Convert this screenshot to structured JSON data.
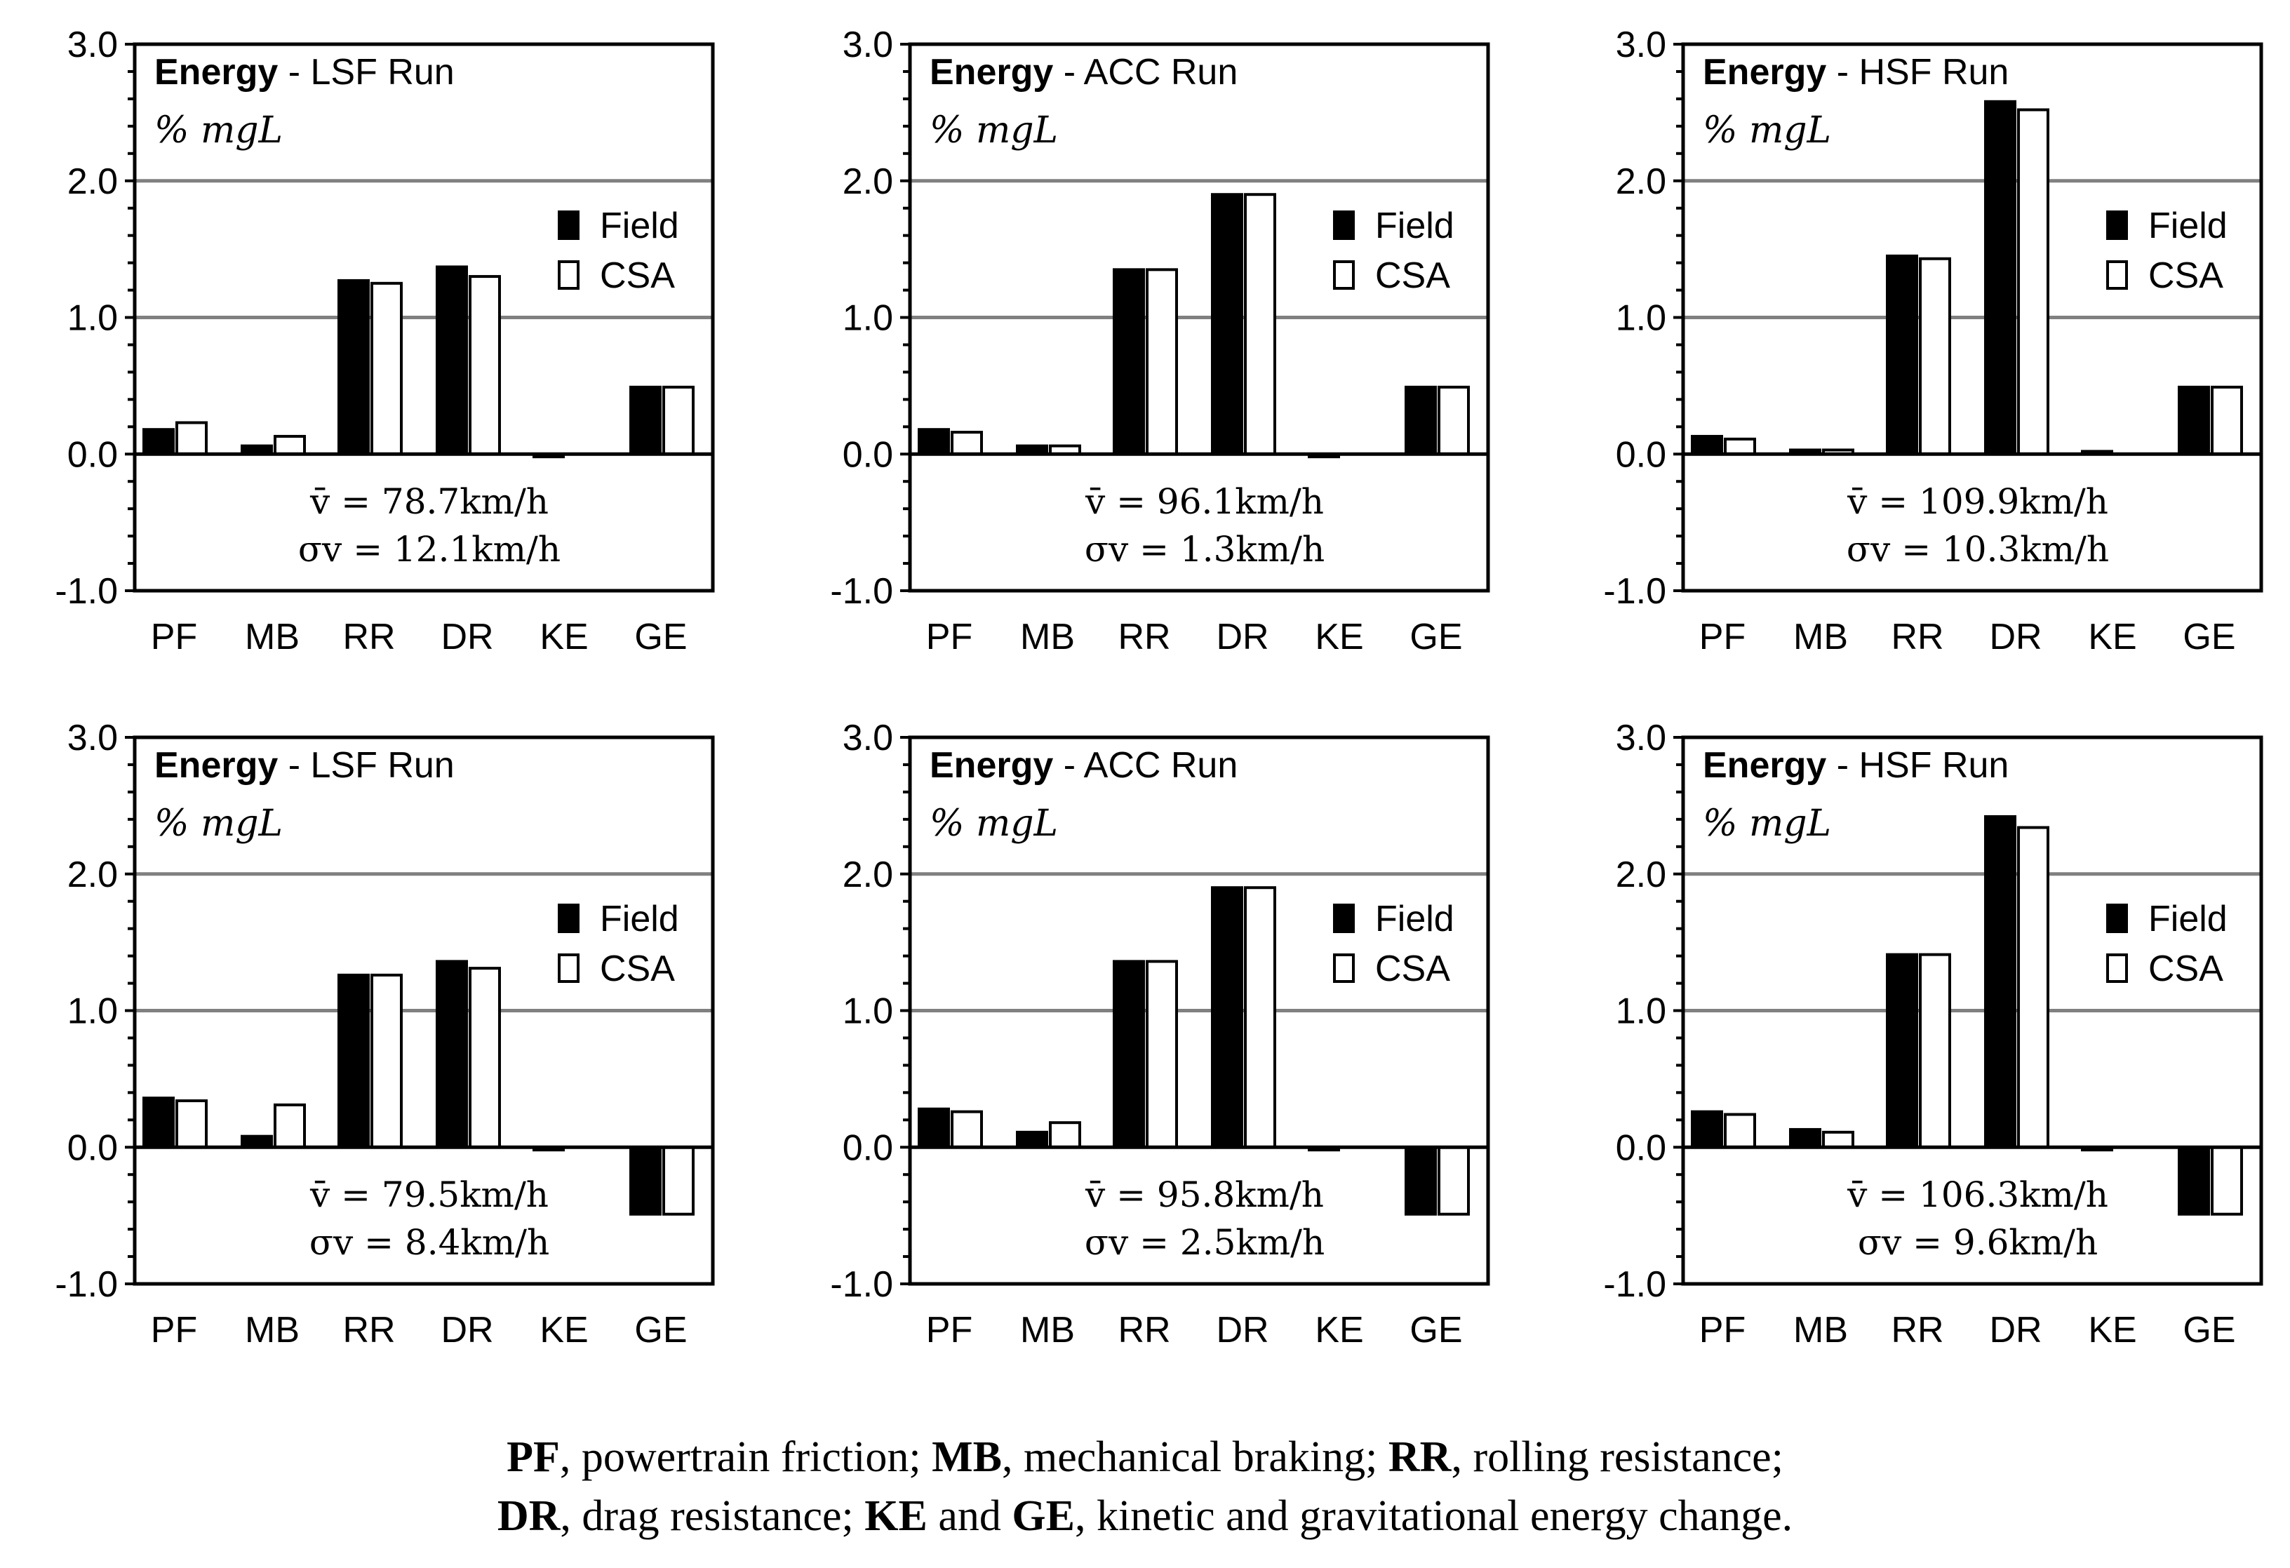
{
  "chart_data": [
    {
      "type": "bar",
      "title_bold": "Energy",
      "title_rest": " - LSF Run",
      "unit_label": "% mgL",
      "categories": [
        "PF",
        "MB",
        "RR",
        "DR",
        "KE",
        "GE"
      ],
      "series": [
        {
          "name": "Field",
          "values": [
            0.18,
            0.06,
            1.27,
            1.37,
            -0.02,
            0.49
          ]
        },
        {
          "name": "CSA",
          "values": [
            0.23,
            0.13,
            1.25,
            1.3,
            0.0,
            0.49
          ]
        }
      ],
      "ylim": [
        -1.0,
        3.0
      ],
      "yticks": [
        "3.0",
        "2.0",
        "1.0",
        "0.0",
        "-1.0"
      ],
      "ytick_values": [
        3.0,
        2.0,
        1.0,
        0.0,
        -1.0
      ],
      "annotation_mean": "v̄ = 78.7km/h",
      "annotation_sd": "σv = 12.1km/h"
    },
    {
      "type": "bar",
      "title_bold": "Energy",
      "title_rest": " - ACC Run",
      "unit_label": "% mgL",
      "categories": [
        "PF",
        "MB",
        "RR",
        "DR",
        "KE",
        "GE"
      ],
      "series": [
        {
          "name": "Field",
          "values": [
            0.18,
            0.06,
            1.35,
            1.9,
            -0.02,
            0.49
          ]
        },
        {
          "name": "CSA",
          "values": [
            0.16,
            0.06,
            1.35,
            1.9,
            0.0,
            0.49
          ]
        }
      ],
      "ylim": [
        -1.0,
        3.0
      ],
      "yticks": [
        "3.0",
        "2.0",
        "1.0",
        "0.0",
        "-1.0"
      ],
      "ytick_values": [
        3.0,
        2.0,
        1.0,
        0.0,
        -1.0
      ],
      "annotation_mean": "v̄ = 96.1km/h",
      "annotation_sd": "σv = 1.3km/h"
    },
    {
      "type": "bar",
      "title_bold": "Energy",
      "title_rest": " - HSF Run",
      "unit_label": "% mgL",
      "categories": [
        "PF",
        "MB",
        "RR",
        "DR",
        "KE",
        "GE"
      ],
      "series": [
        {
          "name": "Field",
          "values": [
            0.13,
            0.03,
            1.45,
            2.58,
            0.02,
            0.49
          ]
        },
        {
          "name": "CSA",
          "values": [
            0.11,
            0.03,
            1.43,
            2.52,
            0.0,
            0.49
          ]
        }
      ],
      "ylim": [
        -1.0,
        3.0
      ],
      "yticks": [
        "3.0",
        "2.0",
        "1.0",
        "0.0",
        "-1.0"
      ],
      "ytick_values": [
        3.0,
        2.0,
        1.0,
        0.0,
        -1.0
      ],
      "annotation_mean": "v̄ = 109.9km/h",
      "annotation_sd": "σv = 10.3km/h"
    },
    {
      "type": "bar",
      "title_bold": "Energy",
      "title_rest": " - LSF Run",
      "unit_label": "% mgL",
      "categories": [
        "PF",
        "MB",
        "RR",
        "DR",
        "KE",
        "GE"
      ],
      "series": [
        {
          "name": "Field",
          "values": [
            0.36,
            0.08,
            1.26,
            1.36,
            -0.02,
            -0.49
          ]
        },
        {
          "name": "CSA",
          "values": [
            0.34,
            0.31,
            1.26,
            1.31,
            0.0,
            -0.49
          ]
        }
      ],
      "ylim": [
        -1.0,
        3.0
      ],
      "yticks": [
        "3.0",
        "2.0",
        "1.0",
        "0.0",
        "-1.0"
      ],
      "ytick_values": [
        3.0,
        2.0,
        1.0,
        0.0,
        -1.0
      ],
      "annotation_mean": "v̄ = 79.5km/h",
      "annotation_sd": "σv = 8.4km/h"
    },
    {
      "type": "bar",
      "title_bold": "Energy",
      "title_rest": " - ACC Run",
      "unit_label": "% mgL",
      "categories": [
        "PF",
        "MB",
        "RR",
        "DR",
        "KE",
        "GE"
      ],
      "series": [
        {
          "name": "Field",
          "values": [
            0.28,
            0.11,
            1.36,
            1.9,
            -0.02,
            -0.49
          ]
        },
        {
          "name": "CSA",
          "values": [
            0.26,
            0.18,
            1.36,
            1.9,
            0.0,
            -0.49
          ]
        }
      ],
      "ylim": [
        -1.0,
        3.0
      ],
      "yticks": [
        "3.0",
        "2.0",
        "1.0",
        "0.0",
        "-1.0"
      ],
      "ytick_values": [
        3.0,
        2.0,
        1.0,
        0.0,
        -1.0
      ],
      "annotation_mean": "v̄ = 95.8km/h",
      "annotation_sd": "σv = 2.5km/h"
    },
    {
      "type": "bar",
      "title_bold": "Energy",
      "title_rest": " - HSF Run",
      "unit_label": "% mgL",
      "categories": [
        "PF",
        "MB",
        "RR",
        "DR",
        "KE",
        "GE"
      ],
      "series": [
        {
          "name": "Field",
          "values": [
            0.26,
            0.13,
            1.41,
            2.42,
            -0.02,
            -0.49
          ]
        },
        {
          "name": "CSA",
          "values": [
            0.24,
            0.11,
            1.41,
            2.34,
            0.0,
            -0.49
          ]
        }
      ],
      "ylim": [
        -1.0,
        3.0
      ],
      "yticks": [
        "3.0",
        "2.0",
        "1.0",
        "0.0",
        "-1.0"
      ],
      "ytick_values": [
        3.0,
        2.0,
        1.0,
        0.0,
        -1.0
      ],
      "annotation_mean": "v̄ = 106.3km/h",
      "annotation_sd": "σv = 9.6km/h"
    }
  ],
  "caption": {
    "line1": [
      {
        "bold": "PF",
        "text": ", powertrain friction; "
      },
      {
        "bold": "MB",
        "text": ", mechanical braking; "
      },
      {
        "bold": "RR",
        "text": ", rolling resistance;"
      }
    ],
    "line2": [
      {
        "bold": "DR",
        "text": ", drag resistance; "
      },
      {
        "bold": "KE",
        "text": " and "
      },
      {
        "bold": "GE",
        "text": ", kinetic and gravitational energy change."
      }
    ]
  },
  "colors": {
    "field_fill": "#000000",
    "csa_fill": "#ffffff",
    "gridline": "#808080",
    "axis": "#000000"
  }
}
